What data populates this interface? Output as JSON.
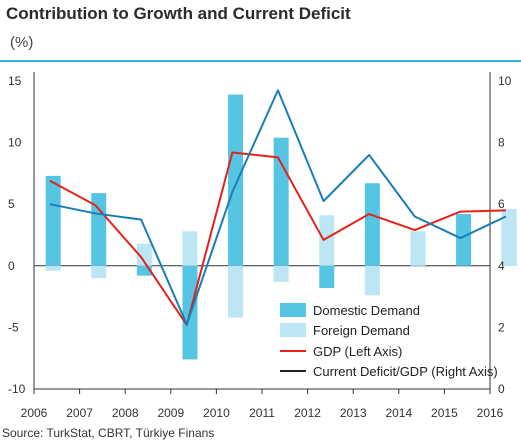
{
  "header": {
    "title": "Contribution to Growth and Current Deficit",
    "unit": "(%)"
  },
  "source": "Source: TurkStat, CBRT, Türkiye Finans",
  "colors": {
    "domestic": "#55c5e3",
    "foreign": "#bde6f5",
    "gdp": "#e2231a",
    "current_deficit": "#1a7db5",
    "rule": "#34b5d6"
  },
  "chart_data": {
    "type": "bar",
    "x_tick_labels": [
      "2006",
      "2007",
      "2008",
      "2009",
      "2010",
      "2011",
      "2012",
      "2013",
      "2014",
      "2015",
      "2016"
    ],
    "left_axis": {
      "ticks": [
        15,
        10,
        5,
        0,
        -5,
        -10
      ],
      "range": [
        -10,
        15
      ]
    },
    "right_axis": {
      "ticks": [
        10,
        8,
        6,
        4,
        2,
        0
      ],
      "range": [
        0,
        10
      ]
    },
    "bar_series": [
      {
        "name": "Domestic Demand",
        "values": [
          7.3,
          5.9,
          -0.8,
          -7.6,
          13.9,
          10.4,
          -1.8,
          6.7,
          0.6,
          4.2,
          3.6
        ]
      },
      {
        "name": "Foreign Demand",
        "values": [
          -0.4,
          -1.0,
          1.8,
          2.8,
          -4.2,
          -1.3,
          4.1,
          -2.4,
          2.8,
          0.0,
          4.6
        ]
      }
    ],
    "line_series": [
      {
        "name": "GDP (Left Axis)",
        "axis": "left",
        "values": [
          6.9,
          4.9,
          0.7,
          -4.8,
          9.2,
          8.8,
          2.1,
          4.2,
          2.9,
          4.4,
          4.5
        ]
      },
      {
        "name": "Current Deficit/GDP (Right Axis)",
        "axis": "right",
        "values": [
          6.0,
          5.7,
          5.5,
          2.1,
          6.4,
          9.7,
          6.1,
          7.6,
          5.6,
          4.9,
          5.6
        ]
      }
    ],
    "legend": {
      "position": "bottom-right",
      "items": [
        "Domestic Demand",
        "Foreign Demand",
        "GDP (Left Axis)",
        "Current Deficit/GDP (Right Axis)"
      ]
    },
    "grid": false
  }
}
